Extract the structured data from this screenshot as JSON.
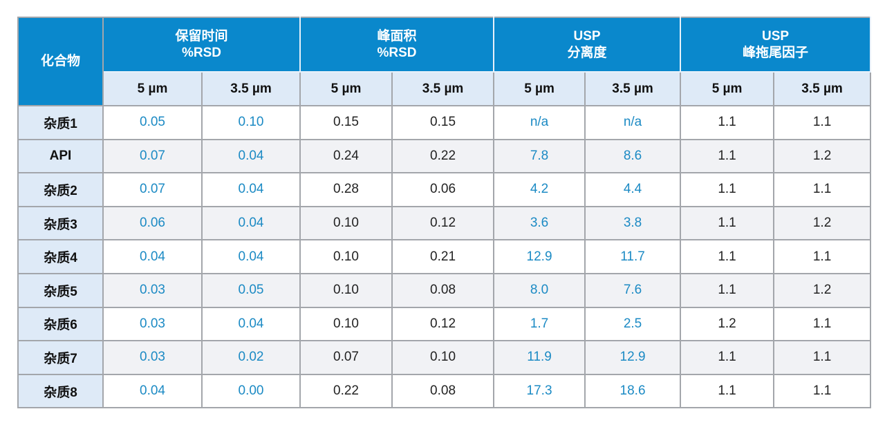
{
  "header": {
    "compound": "化合物",
    "groups": [
      {
        "line1": "保留时间",
        "line2": "%RSD"
      },
      {
        "line1": "峰面积",
        "line2": "%RSD"
      },
      {
        "line1": "USP",
        "line2": "分离度"
      },
      {
        "line1": "USP",
        "line2": "峰拖尾因子"
      }
    ],
    "sub": [
      "5 µm",
      "3.5 µm",
      "5 µm",
      "3.5 µm",
      "5 µm",
      "3.5 µm",
      "5 µm",
      "3.5 µm"
    ]
  },
  "colors": {
    "header_bg": "#0a88cc",
    "highlight_text": "#1b8ac4",
    "subheader_bg": "#deeaf7"
  },
  "rows": [
    {
      "name": "杂质1",
      "values": [
        "0.05",
        "0.10",
        "0.15",
        "0.15",
        "n/a",
        "n/a",
        "1.1",
        "1.1"
      ]
    },
    {
      "name": "API",
      "values": [
        "0.07",
        "0.04",
        "0.24",
        "0.22",
        "7.8",
        "8.6",
        "1.1",
        "1.2"
      ]
    },
    {
      "name": "杂质2",
      "values": [
        "0.07",
        "0.04",
        "0.28",
        "0.06",
        "4.2",
        "4.4",
        "1.1",
        "1.1"
      ]
    },
    {
      "name": "杂质3",
      "values": [
        "0.06",
        "0.04",
        "0.10",
        "0.12",
        "3.6",
        "3.8",
        "1.1",
        "1.2"
      ]
    },
    {
      "name": "杂质4",
      "values": [
        "0.04",
        "0.04",
        "0.10",
        "0.21",
        "12.9",
        "11.7",
        "1.1",
        "1.1"
      ]
    },
    {
      "name": "杂质5",
      "values": [
        "0.03",
        "0.05",
        "0.10",
        "0.08",
        "8.0",
        "7.6",
        "1.1",
        "1.2"
      ]
    },
    {
      "name": "杂质6",
      "values": [
        "0.03",
        "0.04",
        "0.10",
        "0.12",
        "1.7",
        "2.5",
        "1.2",
        "1.1"
      ]
    },
    {
      "name": "杂质7",
      "values": [
        "0.03",
        "0.02",
        "0.07",
        "0.10",
        "11.9",
        "12.9",
        "1.1",
        "1.1"
      ]
    },
    {
      "name": "杂质8",
      "values": [
        "0.04",
        "0.00",
        "0.22",
        "0.08",
        "17.3",
        "18.6",
        "1.1",
        "1.1"
      ]
    }
  ]
}
